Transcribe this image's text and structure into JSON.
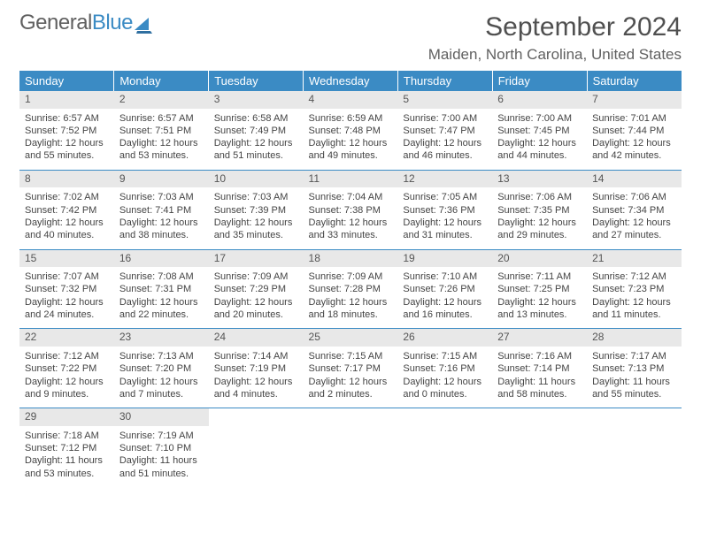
{
  "logo": {
    "text_general": "General",
    "text_blue": "Blue"
  },
  "header": {
    "month_title": "September 2024",
    "location": "Maiden, North Carolina, United States"
  },
  "colors": {
    "header_bg": "#3b8bc4",
    "header_text": "#ffffff",
    "daynum_bg": "#e8e8e8",
    "border": "#3b8bc4",
    "text": "#444444",
    "logo_gray": "#606060",
    "logo_blue": "#3b8bc4"
  },
  "weekdays": [
    "Sunday",
    "Monday",
    "Tuesday",
    "Wednesday",
    "Thursday",
    "Friday",
    "Saturday"
  ],
  "weeks": [
    [
      {
        "num": "1",
        "sunrise": "6:57 AM",
        "sunset": "7:52 PM",
        "daylight": "12 hours and 55 minutes."
      },
      {
        "num": "2",
        "sunrise": "6:57 AM",
        "sunset": "7:51 PM",
        "daylight": "12 hours and 53 minutes."
      },
      {
        "num": "3",
        "sunrise": "6:58 AM",
        "sunset": "7:49 PM",
        "daylight": "12 hours and 51 minutes."
      },
      {
        "num": "4",
        "sunrise": "6:59 AM",
        "sunset": "7:48 PM",
        "daylight": "12 hours and 49 minutes."
      },
      {
        "num": "5",
        "sunrise": "7:00 AM",
        "sunset": "7:47 PM",
        "daylight": "12 hours and 46 minutes."
      },
      {
        "num": "6",
        "sunrise": "7:00 AM",
        "sunset": "7:45 PM",
        "daylight": "12 hours and 44 minutes."
      },
      {
        "num": "7",
        "sunrise": "7:01 AM",
        "sunset": "7:44 PM",
        "daylight": "12 hours and 42 minutes."
      }
    ],
    [
      {
        "num": "8",
        "sunrise": "7:02 AM",
        "sunset": "7:42 PM",
        "daylight": "12 hours and 40 minutes."
      },
      {
        "num": "9",
        "sunrise": "7:03 AM",
        "sunset": "7:41 PM",
        "daylight": "12 hours and 38 minutes."
      },
      {
        "num": "10",
        "sunrise": "7:03 AM",
        "sunset": "7:39 PM",
        "daylight": "12 hours and 35 minutes."
      },
      {
        "num": "11",
        "sunrise": "7:04 AM",
        "sunset": "7:38 PM",
        "daylight": "12 hours and 33 minutes."
      },
      {
        "num": "12",
        "sunrise": "7:05 AM",
        "sunset": "7:36 PM",
        "daylight": "12 hours and 31 minutes."
      },
      {
        "num": "13",
        "sunrise": "7:06 AM",
        "sunset": "7:35 PM",
        "daylight": "12 hours and 29 minutes."
      },
      {
        "num": "14",
        "sunrise": "7:06 AM",
        "sunset": "7:34 PM",
        "daylight": "12 hours and 27 minutes."
      }
    ],
    [
      {
        "num": "15",
        "sunrise": "7:07 AM",
        "sunset": "7:32 PM",
        "daylight": "12 hours and 24 minutes."
      },
      {
        "num": "16",
        "sunrise": "7:08 AM",
        "sunset": "7:31 PM",
        "daylight": "12 hours and 22 minutes."
      },
      {
        "num": "17",
        "sunrise": "7:09 AM",
        "sunset": "7:29 PM",
        "daylight": "12 hours and 20 minutes."
      },
      {
        "num": "18",
        "sunrise": "7:09 AM",
        "sunset": "7:28 PM",
        "daylight": "12 hours and 18 minutes."
      },
      {
        "num": "19",
        "sunrise": "7:10 AM",
        "sunset": "7:26 PM",
        "daylight": "12 hours and 16 minutes."
      },
      {
        "num": "20",
        "sunrise": "7:11 AM",
        "sunset": "7:25 PM",
        "daylight": "12 hours and 13 minutes."
      },
      {
        "num": "21",
        "sunrise": "7:12 AM",
        "sunset": "7:23 PM",
        "daylight": "12 hours and 11 minutes."
      }
    ],
    [
      {
        "num": "22",
        "sunrise": "7:12 AM",
        "sunset": "7:22 PM",
        "daylight": "12 hours and 9 minutes."
      },
      {
        "num": "23",
        "sunrise": "7:13 AM",
        "sunset": "7:20 PM",
        "daylight": "12 hours and 7 minutes."
      },
      {
        "num": "24",
        "sunrise": "7:14 AM",
        "sunset": "7:19 PM",
        "daylight": "12 hours and 4 minutes."
      },
      {
        "num": "25",
        "sunrise": "7:15 AM",
        "sunset": "7:17 PM",
        "daylight": "12 hours and 2 minutes."
      },
      {
        "num": "26",
        "sunrise": "7:15 AM",
        "sunset": "7:16 PM",
        "daylight": "12 hours and 0 minutes."
      },
      {
        "num": "27",
        "sunrise": "7:16 AM",
        "sunset": "7:14 PM",
        "daylight": "11 hours and 58 minutes."
      },
      {
        "num": "28",
        "sunrise": "7:17 AM",
        "sunset": "7:13 PM",
        "daylight": "11 hours and 55 minutes."
      }
    ],
    [
      {
        "num": "29",
        "sunrise": "7:18 AM",
        "sunset": "7:12 PM",
        "daylight": "11 hours and 53 minutes."
      },
      {
        "num": "30",
        "sunrise": "7:19 AM",
        "sunset": "7:10 PM",
        "daylight": "11 hours and 51 minutes."
      },
      null,
      null,
      null,
      null,
      null
    ]
  ],
  "labels": {
    "sunrise": "Sunrise:",
    "sunset": "Sunset:",
    "daylight": "Daylight:"
  }
}
